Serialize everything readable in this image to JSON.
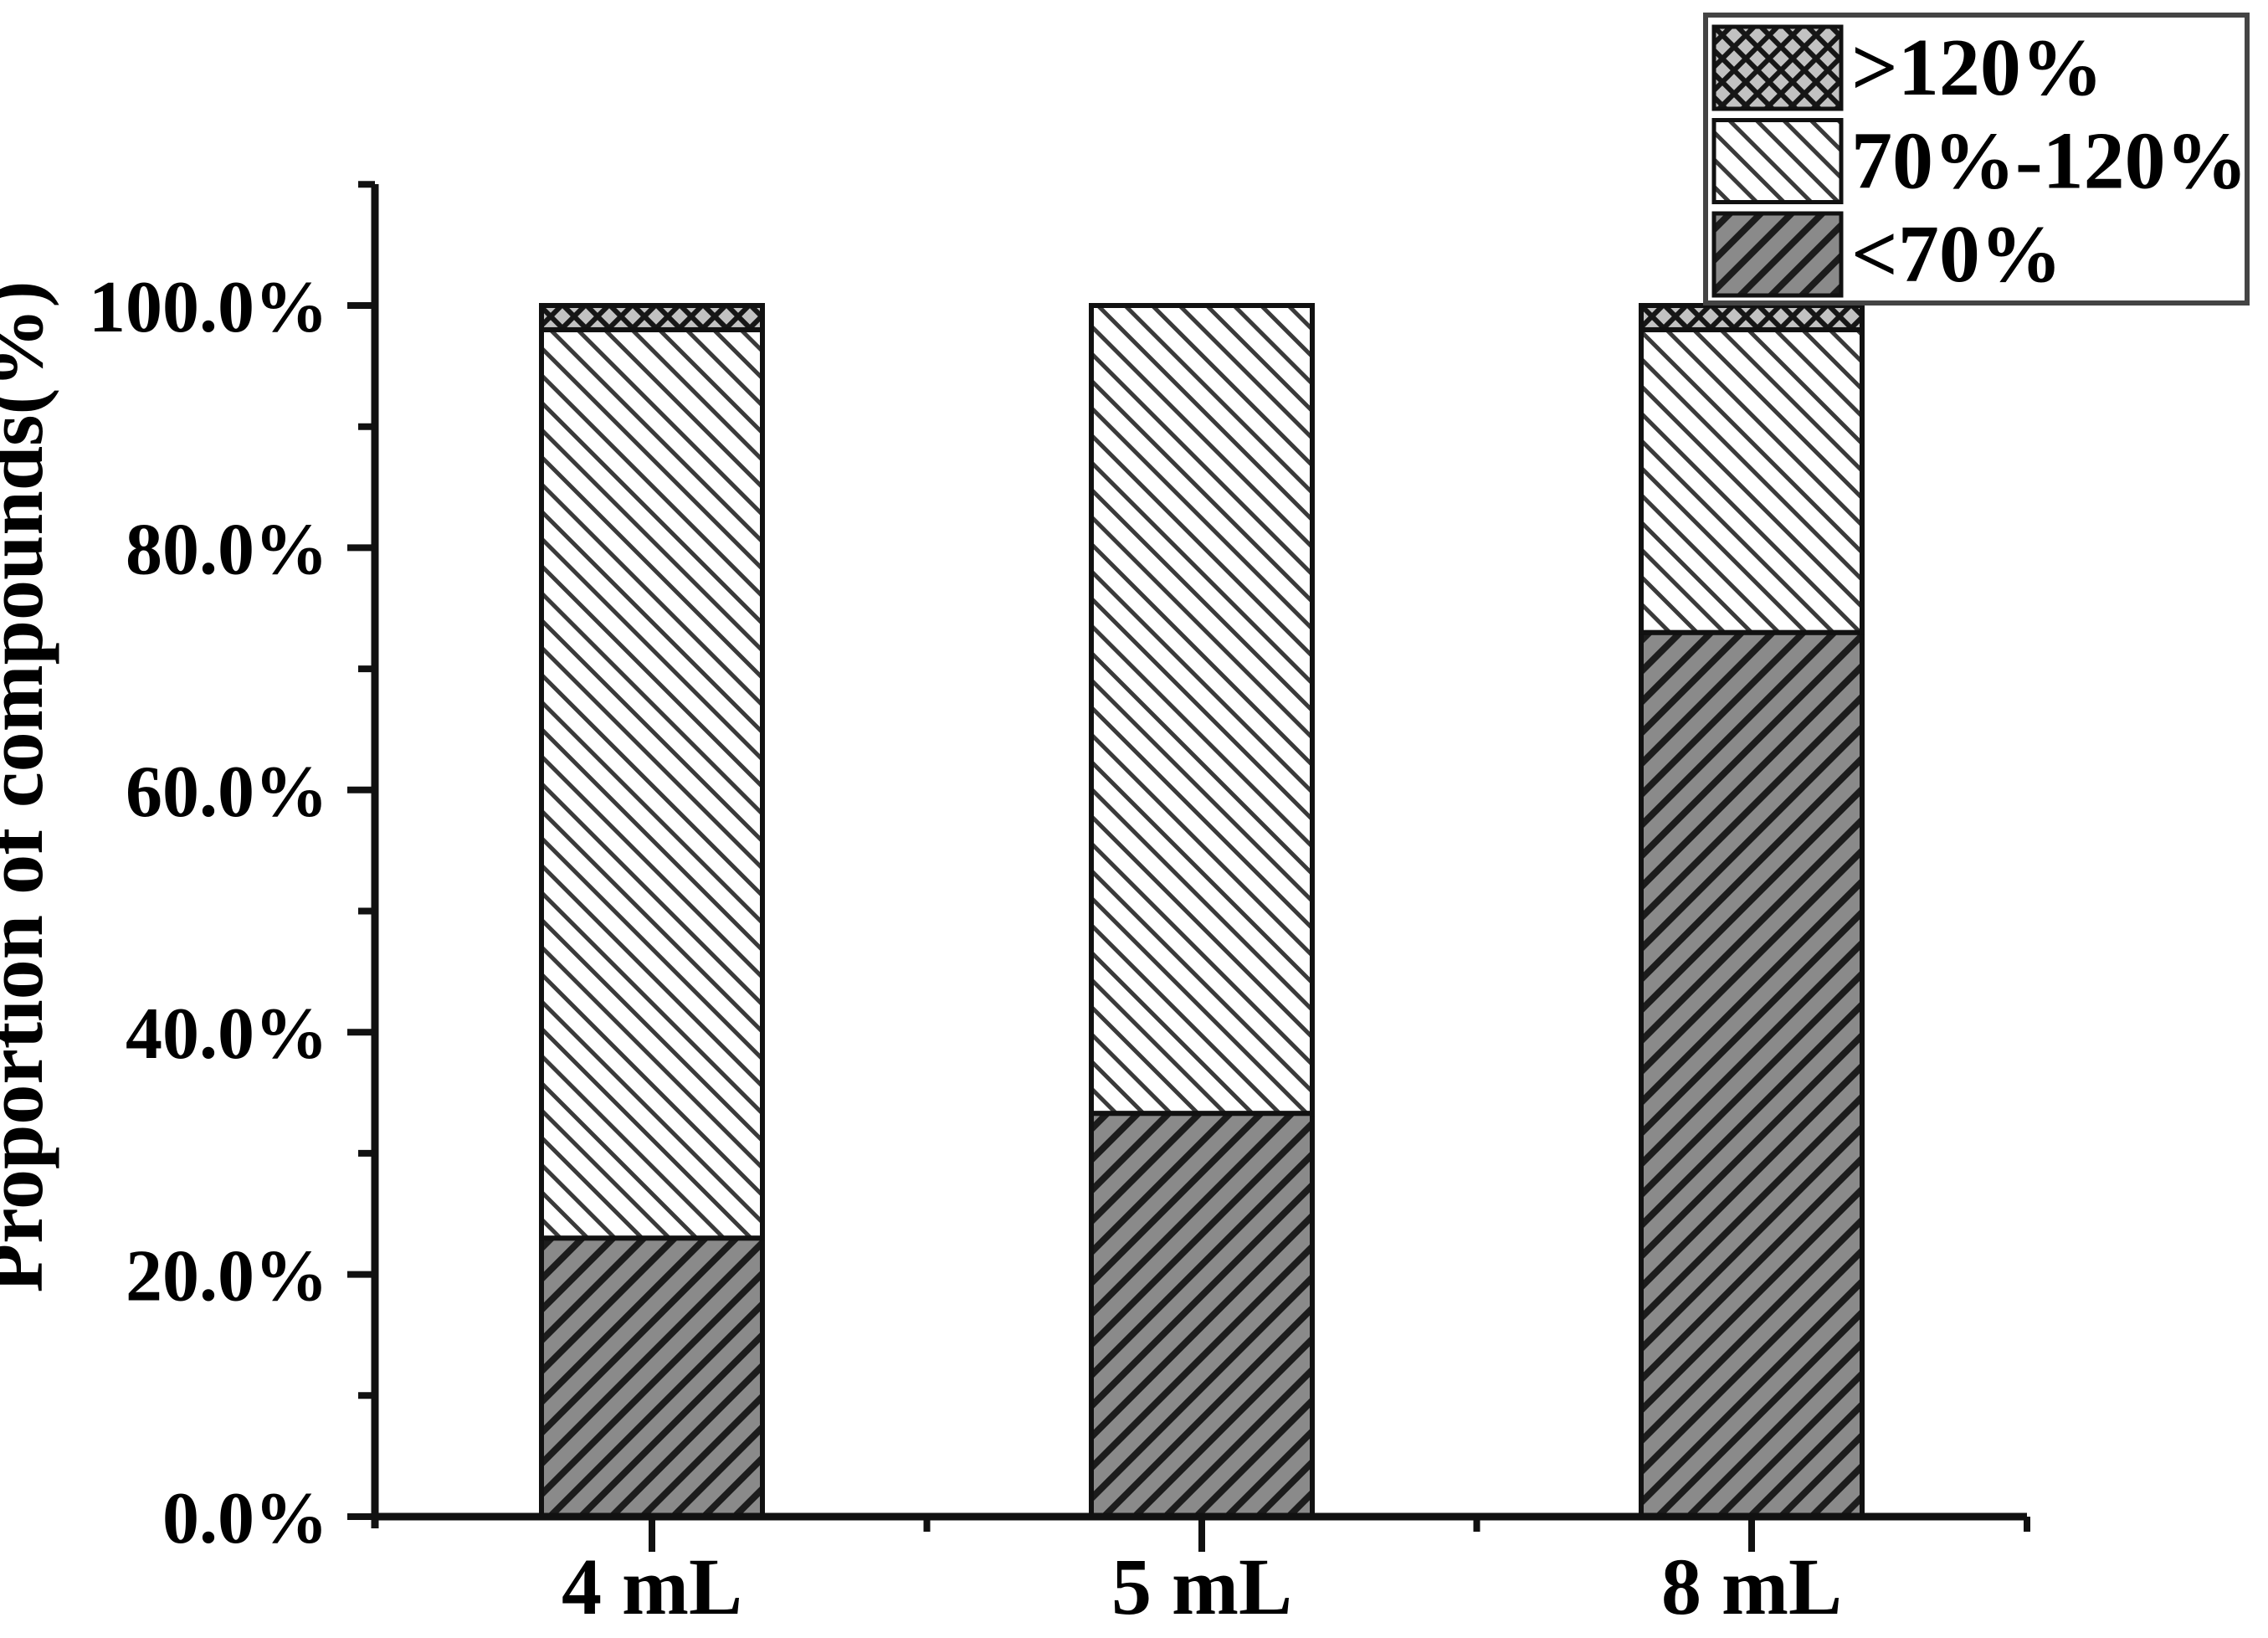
{
  "figure": {
    "background": "#ffffff",
    "text_color": "#000000",
    "axis_color": "#111111"
  },
  "chart_data": {
    "type": "bar",
    "stacked": true,
    "title": "",
    "xlabel": "",
    "ylabel": "Proportion of compounds(%)",
    "categories": [
      "4 mL",
      "5 mL",
      "8 mL"
    ],
    "series": [
      {
        "name": "<70%",
        "values": [
          23.0,
          33.3,
          73.0
        ],
        "pattern": "diagonal-forward",
        "fill": "#8a8a8a",
        "hatch_color": "#1c1c1c"
      },
      {
        "name": "70%-120%",
        "values": [
          75.0,
          66.7,
          25.0
        ],
        "pattern": "diagonal-back",
        "fill": "#ffffff",
        "hatch_color": "#3a3a3a"
      },
      {
        "name": ">120%",
        "values": [
          2.0,
          0.0,
          2.0
        ],
        "pattern": "crosshatch",
        "fill": "#c2c2c2",
        "hatch_color": "#161616"
      }
    ],
    "ylim": [
      0,
      110
    ],
    "ytick_values": [
      0,
      20,
      40,
      60,
      80,
      100
    ],
    "ytick_labels": [
      "0.0%",
      "20.0%",
      "40.0%",
      "60.0%",
      "80.0%",
      "100.0%"
    ],
    "minor_ytick_values": [
      10,
      30,
      50,
      70,
      90,
      110
    ],
    "grid": false,
    "legend": {
      "position": "top-right",
      "items": [
        {
          "label": ">120%",
          "pattern": "crosshatch"
        },
        {
          "label": "70%-120%",
          "pattern": "diagonal-back"
        },
        {
          "label": "<70%",
          "pattern": "diagonal-forward"
        }
      ]
    }
  }
}
